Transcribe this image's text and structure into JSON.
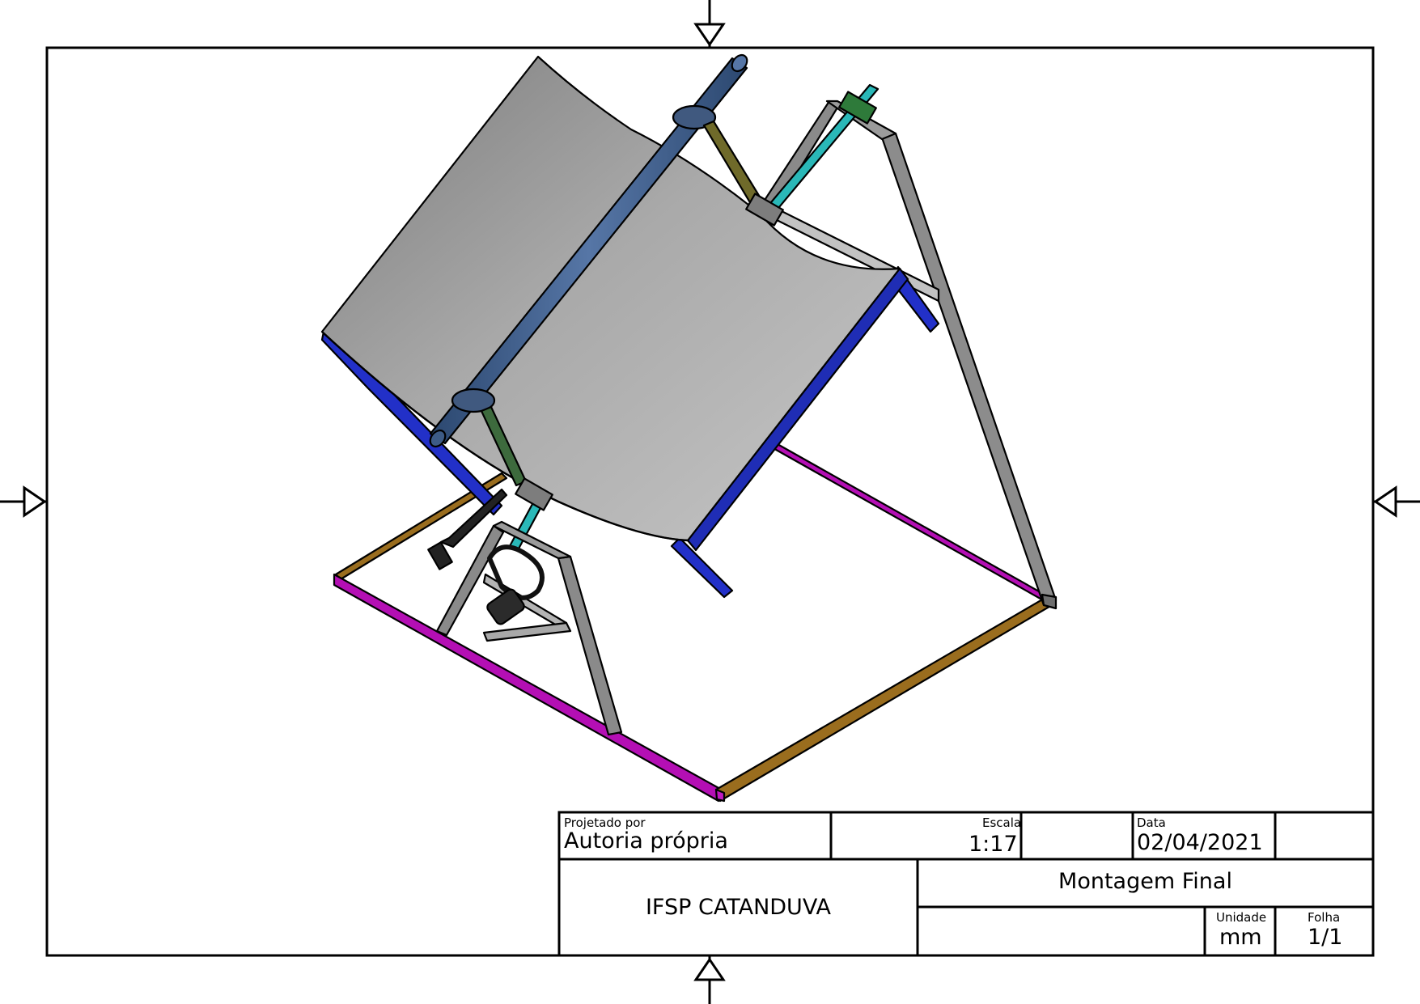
{
  "drawing": {
    "title_block": {
      "designed_by_label": "Projetado por",
      "designed_by_value": "Autoria própria",
      "scale_label": "Escala",
      "scale_value": "1:17",
      "date_label": "Data",
      "date_value": "02/04/2021",
      "institution": "IFSP CATANDUVA",
      "title": "Montagem Final",
      "unit_label": "Unidade",
      "unit_value": "mm",
      "sheet_label": "Folha",
      "sheet_value": "1/1"
    },
    "colors": {
      "frame_magenta": "#b40fb4",
      "frame_brown": "#9a6d1e",
      "support_blue": "#2230c8",
      "reflector_gray": "#a4a4a4",
      "shaft_blue": "#3d5b86",
      "tower_gray": "#8a8a8a",
      "axle_cyan": "#2ab8b8",
      "arm_olive": "#6f6a2a"
    }
  }
}
